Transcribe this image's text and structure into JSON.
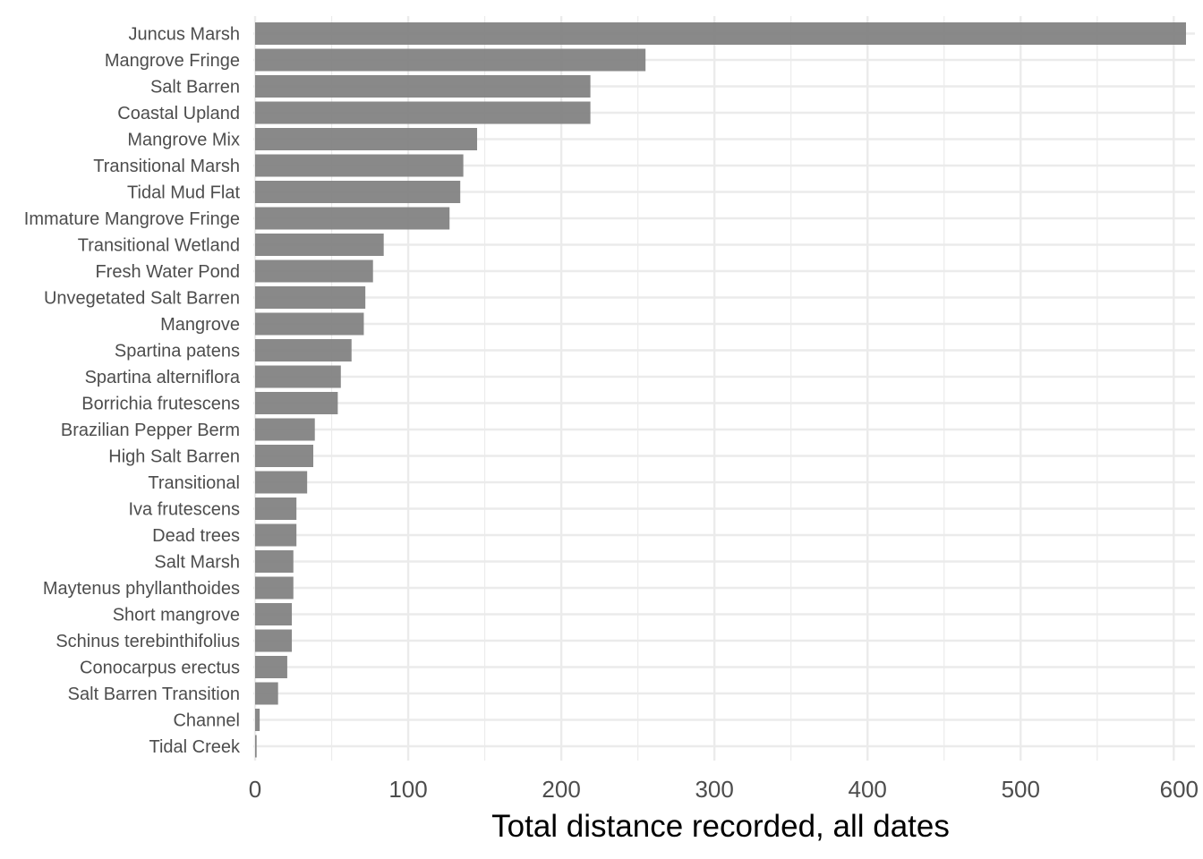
{
  "chart_data": {
    "type": "bar",
    "orientation": "horizontal",
    "categories": [
      "Juncus Marsh",
      "Mangrove Fringe",
      "Salt Barren",
      "Coastal Upland",
      "Mangrove Mix",
      "Transitional Marsh",
      "Tidal Mud Flat",
      "Immature Mangrove Fringe",
      "Transitional Wetland",
      "Fresh Water Pond",
      "Unvegetated Salt Barren",
      "Mangrove",
      "Spartina patens",
      "Spartina alterniflora",
      "Borrichia frutescens",
      "Brazilian Pepper Berm",
      "High Salt Barren",
      "Transitional",
      "Iva frutescens",
      "Dead trees",
      "Salt Marsh",
      "Maytenus phyllanthoides",
      "Short mangrove",
      "Schinus terebinthifolius",
      "Conocarpus erectus",
      "Salt Barren Transition",
      "Channel",
      "Tidal Creek"
    ],
    "values": [
      608,
      255,
      219,
      219,
      145,
      136,
      134,
      127,
      84,
      77,
      72,
      71,
      63,
      56,
      54,
      39,
      38,
      34,
      27,
      27,
      25,
      25,
      24,
      24,
      21,
      15,
      3,
      1
    ],
    "xlabel": "Total distance recorded, all dates",
    "ylabel": "",
    "xlim": [
      0,
      608
    ],
    "xticks": [
      0,
      100,
      200,
      300,
      400,
      500,
      600
    ],
    "grid": true,
    "bar_color": "#7f7f7f",
    "grid_color": "#ebebeb"
  }
}
